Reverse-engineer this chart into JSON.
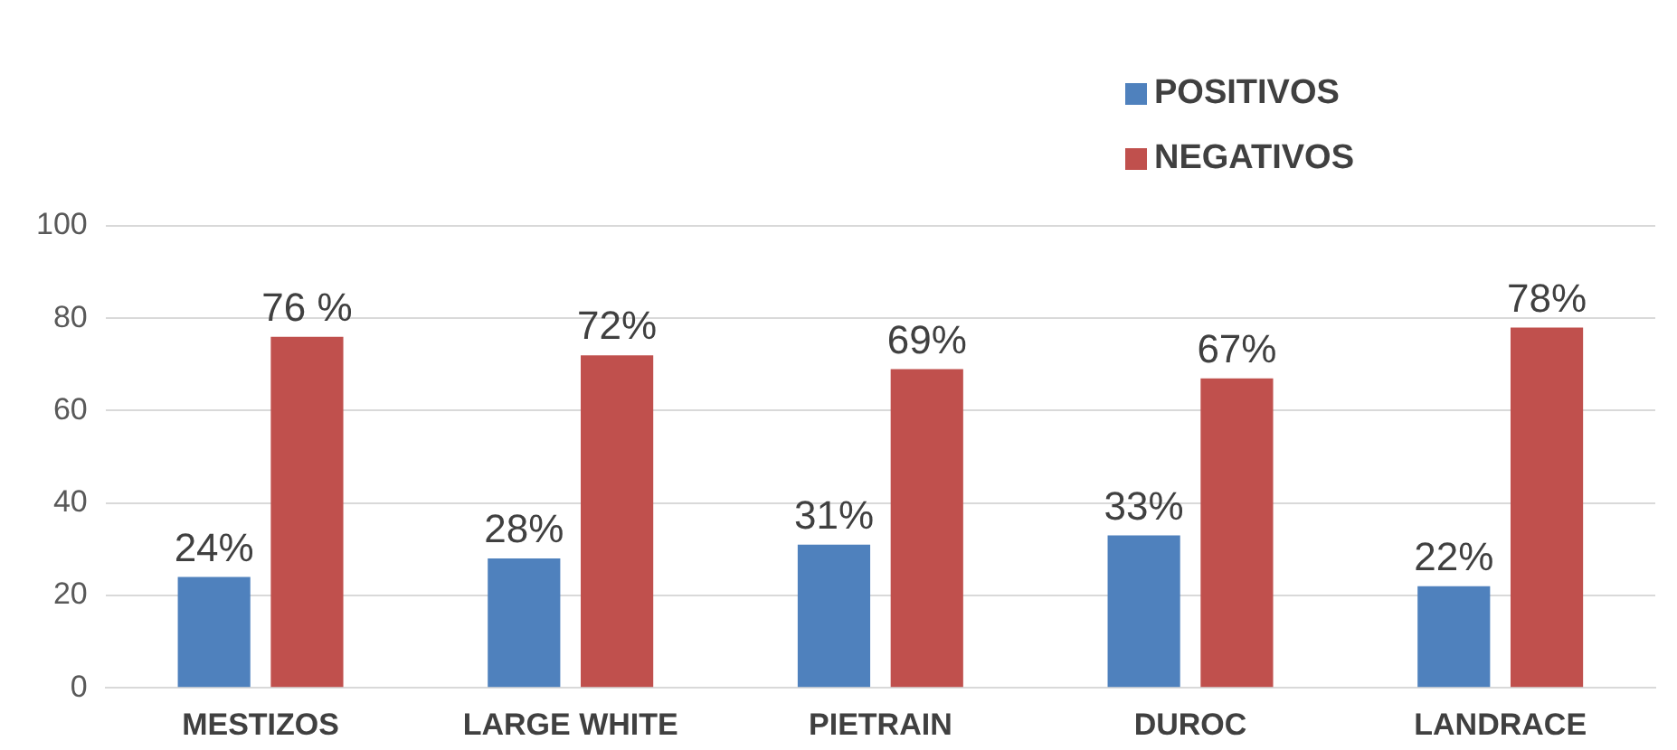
{
  "chart_data": {
    "type": "bar",
    "categories": [
      "MESTIZOS",
      "LARGE WHITE",
      "PIETRAIN",
      "DUROC",
      "LANDRACE"
    ],
    "series": [
      {
        "name": "POSITIVOS",
        "color": "#4f81bd",
        "values": [
          24,
          28,
          31,
          33,
          22
        ],
        "value_labels": [
          "24%",
          "28%",
          "31%",
          "33%",
          "22%"
        ]
      },
      {
        "name": "NEGATIVOS",
        "color": "#c0504d",
        "values": [
          76,
          72,
          69,
          67,
          78
        ],
        "value_labels": [
          "76 %",
          "72%",
          "69%",
          "67%",
          "78%"
        ]
      }
    ],
    "ylim": [
      0,
      100
    ],
    "yticks": [
      0,
      20,
      40,
      60,
      80,
      100
    ],
    "grid": "y",
    "legend": "top right"
  }
}
